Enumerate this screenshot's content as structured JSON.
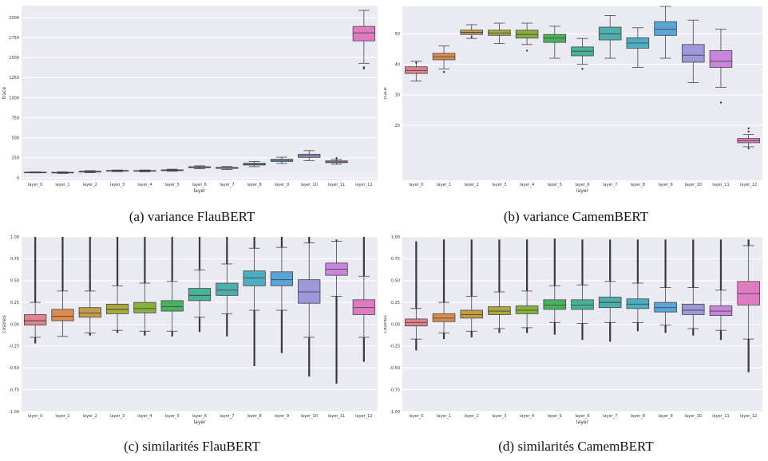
{
  "chart_data": [
    {
      "type": "box",
      "caption": "(a) variance FlauBERT",
      "xlabel": "layer",
      "ylabel": "trace",
      "ylim": [
        -30,
        2150
      ],
      "yticks": [
        0,
        250,
        500,
        750,
        1000,
        1250,
        1500,
        1750,
        2000
      ],
      "categories": [
        "layer_0",
        "layer_1",
        "layer_2",
        "layer_3",
        "layer_4",
        "layer_5",
        "layer_6",
        "layer_7",
        "layer_8",
        "layer_9",
        "layer_10",
        "layer_11",
        "layer_12"
      ],
      "colors": [
        "#e1828e",
        "#dd8a4f",
        "#c49c48",
        "#a8a83f",
        "#87b03d",
        "#49b25e",
        "#4bb195",
        "#4eaea9",
        "#4daec3",
        "#5aa5d8",
        "#9e97da",
        "#c985dc",
        "#e07bc2"
      ],
      "boxes": [
        {
          "min": 62,
          "q1": 66,
          "median": 68,
          "q3": 71,
          "max": 75,
          "outliers": []
        },
        {
          "min": 55,
          "q1": 61,
          "median": 65,
          "q3": 69,
          "max": 75,
          "outliers": []
        },
        {
          "min": 65,
          "q1": 72,
          "median": 77,
          "q3": 82,
          "max": 90,
          "outliers": []
        },
        {
          "min": 78,
          "q1": 84,
          "median": 88,
          "q3": 92,
          "max": 98,
          "outliers": []
        },
        {
          "min": 76,
          "q1": 83,
          "median": 87,
          "q3": 91,
          "max": 98,
          "outliers": []
        },
        {
          "min": 82,
          "q1": 90,
          "median": 95,
          "q3": 100,
          "max": 108,
          "outliers": []
        },
        {
          "min": 115,
          "q1": 127,
          "median": 133,
          "q3": 139,
          "max": 150,
          "outliers": []
        },
        {
          "min": 105,
          "q1": 118,
          "median": 124,
          "q3": 130,
          "max": 142,
          "outliers": []
        },
        {
          "min": 140,
          "q1": 160,
          "median": 170,
          "q3": 182,
          "max": 205,
          "outliers": []
        },
        {
          "min": 180,
          "q1": 205,
          "median": 218,
          "q3": 232,
          "max": 258,
          "outliers": []
        },
        {
          "min": 215,
          "q1": 255,
          "median": 275,
          "q3": 295,
          "max": 340,
          "outliers": []
        },
        {
          "min": 170,
          "q1": 190,
          "median": 200,
          "q3": 212,
          "max": 230,
          "outliers": [
            245
          ]
        },
        {
          "min": 1430,
          "q1": 1710,
          "median": 1810,
          "q3": 1890,
          "max": 2090,
          "outliers": [
            1365,
            1380
          ]
        }
      ]
    },
    {
      "type": "box",
      "caption": "(b) variance CamemBERT",
      "xlabel": "layer",
      "ylabel": "trace",
      "ylim": [
        2,
        59
      ],
      "yticks": [
        20,
        30,
        40,
        50
      ],
      "categories": [
        "layer_0",
        "layer_1",
        "layer_2",
        "layer_3",
        "layer_4",
        "layer_5",
        "layer_6",
        "layer_7",
        "layer_8",
        "layer_9",
        "layer_10",
        "layer_11",
        "layer_12"
      ],
      "colors": [
        "#e1828e",
        "#dd8a4f",
        "#c49c48",
        "#a8a83f",
        "#87b03d",
        "#49b25e",
        "#4bb195",
        "#4eaea9",
        "#4daec3",
        "#5aa5d8",
        "#9e97da",
        "#c985dc",
        "#e07bc2"
      ],
      "boxes": [
        {
          "min": 34.5,
          "q1": 37.0,
          "median": 38.0,
          "q3": 39.2,
          "max": 41.0,
          "outliers": [
            40.5
          ]
        },
        {
          "min": 38.5,
          "q1": 41.5,
          "median": 42.5,
          "q3": 43.6,
          "max": 46.0,
          "outliers": [
            37.5
          ]
        },
        {
          "min": 48.5,
          "q1": 49.8,
          "median": 50.5,
          "q3": 51.2,
          "max": 53.0,
          "outliers": [
            49.0
          ]
        },
        {
          "min": 46.8,
          "q1": 49.5,
          "median": 50.3,
          "q3": 51.2,
          "max": 53.5,
          "outliers": []
        },
        {
          "min": 46.5,
          "q1": 48.6,
          "median": 49.8,
          "q3": 51.2,
          "max": 53.5,
          "outliers": [
            44.5
          ]
        },
        {
          "min": 42.0,
          "q1": 47.2,
          "median": 48.6,
          "q3": 49.8,
          "max": 52.5,
          "outliers": []
        },
        {
          "min": 40.0,
          "q1": 42.8,
          "median": 44.3,
          "q3": 45.7,
          "max": 48.5,
          "outliers": [
            38.5
          ]
        },
        {
          "min": 42.0,
          "q1": 48.0,
          "median": 50.0,
          "q3": 52.2,
          "max": 56.0,
          "outliers": []
        },
        {
          "min": 39.0,
          "q1": 45.3,
          "median": 47.0,
          "q3": 48.7,
          "max": 52.0,
          "outliers": []
        },
        {
          "min": 42.0,
          "q1": 49.5,
          "median": 51.5,
          "q3": 54.0,
          "max": 59.0,
          "outliers": []
        },
        {
          "min": 34.0,
          "q1": 40.7,
          "median": 43.0,
          "q3": 46.5,
          "max": 54.5,
          "outliers": []
        },
        {
          "min": 32.5,
          "q1": 39.0,
          "median": 41.0,
          "q3": 44.5,
          "max": 51.5,
          "outliers": [
            27.5
          ]
        },
        {
          "min": 13.0,
          "q1": 14.3,
          "median": 15.0,
          "q3": 15.7,
          "max": 17.0,
          "outliers": [
            18.0,
            19.0,
            12.5
          ]
        }
      ]
    },
    {
      "type": "box",
      "caption": "(c) similarités FlauBERT",
      "xlabel": "layer",
      "ylabel": "cosines",
      "ylim": [
        -1.0,
        1.0
      ],
      "yticks": [
        -1.0,
        -0.75,
        -0.5,
        -0.25,
        0.0,
        0.25,
        0.5,
        0.75,
        1.0
      ],
      "categories": [
        "layer_0",
        "layer_1",
        "layer_2",
        "layer_3",
        "layer_4",
        "layer_5",
        "layer_6",
        "layer_7",
        "layer_8",
        "layer_9",
        "layer_10",
        "layer_11",
        "layer_12"
      ],
      "colors": [
        "#e1828e",
        "#dd8a4f",
        "#c49c48",
        "#a8a83f",
        "#87b03d",
        "#49b25e",
        "#4bb195",
        "#4eaea9",
        "#4daec3",
        "#5aa5d8",
        "#9e97da",
        "#c985dc",
        "#e07bc2"
      ],
      "boxes": [
        {
          "min": -0.15,
          "q1": -0.01,
          "median": 0.04,
          "q3": 0.11,
          "max": 0.25,
          "fliers": [
            -0.22,
            1.0
          ]
        },
        {
          "min": -0.14,
          "q1": 0.04,
          "median": 0.09,
          "q3": 0.17,
          "max": 0.38,
          "fliers": [
            1.0
          ]
        },
        {
          "min": -0.1,
          "q1": 0.08,
          "median": 0.13,
          "q3": 0.19,
          "max": 0.38,
          "fliers": [
            -0.13,
            1.0
          ]
        },
        {
          "min": -0.07,
          "q1": 0.12,
          "median": 0.17,
          "q3": 0.23,
          "max": 0.44,
          "fliers": [
            -0.1,
            1.0
          ]
        },
        {
          "min": -0.08,
          "q1": 0.13,
          "median": 0.18,
          "q3": 0.25,
          "max": 0.47,
          "fliers": [
            -0.13,
            1.0
          ]
        },
        {
          "min": -0.08,
          "q1": 0.15,
          "median": 0.2,
          "q3": 0.27,
          "max": 0.49,
          "fliers": [
            -0.14,
            1.0
          ]
        },
        {
          "min": 0.08,
          "q1": 0.27,
          "median": 0.33,
          "q3": 0.41,
          "max": 0.62,
          "fliers": [
            -0.09,
            1.0
          ]
        },
        {
          "min": 0.12,
          "q1": 0.33,
          "median": 0.39,
          "q3": 0.47,
          "max": 0.69,
          "fliers": [
            -0.14,
            1.0
          ]
        },
        {
          "min": 0.16,
          "q1": 0.44,
          "median": 0.53,
          "q3": 0.61,
          "max": 0.87,
          "fliers": [
            -0.48,
            1.0
          ]
        },
        {
          "min": 0.16,
          "q1": 0.44,
          "median": 0.51,
          "q3": 0.6,
          "max": 0.88,
          "fliers": [
            -0.33,
            1.0
          ]
        },
        {
          "min": -0.15,
          "q1": 0.24,
          "median": 0.37,
          "q3": 0.51,
          "max": 0.93,
          "fliers": [
            -0.6,
            1.0
          ]
        },
        {
          "min": 0.32,
          "q1": 0.56,
          "median": 0.63,
          "q3": 0.7,
          "max": 0.95,
          "fliers": [
            -0.68,
            0.97
          ]
        },
        {
          "min": -0.15,
          "q1": 0.11,
          "median": 0.19,
          "q3": 0.28,
          "max": 0.55,
          "fliers": [
            -0.43,
            1.0
          ]
        }
      ]
    },
    {
      "type": "box",
      "caption": "(d) similarités CamemBERT",
      "xlabel": "layer",
      "ylabel": "cosines",
      "ylim": [
        -1.0,
        1.0
      ],
      "yticks": [
        -1.0,
        -0.75,
        -0.5,
        -0.25,
        0.0,
        0.25,
        0.5,
        0.75,
        1.0
      ],
      "categories": [
        "layer_0",
        "layer_1",
        "layer_2",
        "layer_3",
        "layer_4",
        "layer_5",
        "layer_6",
        "layer_7",
        "layer_8",
        "layer_9",
        "layer_10",
        "layer_11",
        "layer_12"
      ],
      "colors": [
        "#e1828e",
        "#dd8a4f",
        "#c49c48",
        "#a8a83f",
        "#87b03d",
        "#49b25e",
        "#4bb195",
        "#4eaea9",
        "#4daec3",
        "#5aa5d8",
        "#9e97da",
        "#c985dc",
        "#e07bc2"
      ],
      "boxes": [
        {
          "min": -0.17,
          "q1": -0.02,
          "median": 0.02,
          "q3": 0.06,
          "max": 0.18,
          "fliers": [
            -0.3,
            0.95
          ]
        },
        {
          "min": -0.1,
          "q1": 0.03,
          "median": 0.07,
          "q3": 0.12,
          "max": 0.25,
          "fliers": [
            -0.17,
            0.97
          ]
        },
        {
          "min": -0.08,
          "q1": 0.07,
          "median": 0.11,
          "q3": 0.16,
          "max": 0.32,
          "fliers": [
            -0.15,
            0.97
          ]
        },
        {
          "min": -0.05,
          "q1": 0.11,
          "median": 0.15,
          "q3": 0.2,
          "max": 0.37,
          "fliers": [
            -0.1,
            0.97
          ]
        },
        {
          "min": -0.04,
          "q1": 0.12,
          "median": 0.16,
          "q3": 0.21,
          "max": 0.38,
          "fliers": [
            -0.1,
            0.97
          ]
        },
        {
          "min": 0.02,
          "q1": 0.17,
          "median": 0.22,
          "q3": 0.28,
          "max": 0.44,
          "fliers": [
            -0.12,
            0.98
          ]
        },
        {
          "min": 0.01,
          "q1": 0.17,
          "median": 0.22,
          "q3": 0.28,
          "max": 0.45,
          "fliers": [
            -0.18,
            0.97
          ]
        },
        {
          "min": 0.02,
          "q1": 0.19,
          "median": 0.25,
          "q3": 0.31,
          "max": 0.49,
          "fliers": [
            -0.2,
            0.97
          ]
        },
        {
          "min": 0.02,
          "q1": 0.18,
          "median": 0.23,
          "q3": 0.29,
          "max": 0.47,
          "fliers": [
            -0.08,
            0.97
          ]
        },
        {
          "min": -0.01,
          "q1": 0.14,
          "median": 0.19,
          "q3": 0.25,
          "max": 0.42,
          "fliers": [
            -0.1,
            0.97
          ]
        },
        {
          "min": -0.05,
          "q1": 0.11,
          "median": 0.16,
          "q3": 0.23,
          "max": 0.42,
          "fliers": [
            -0.13,
            0.97
          ]
        },
        {
          "min": -0.07,
          "q1": 0.1,
          "median": 0.15,
          "q3": 0.21,
          "max": 0.39,
          "fliers": [
            -0.18,
            0.97
          ]
        },
        {
          "min": -0.17,
          "q1": 0.22,
          "median": 0.35,
          "q3": 0.49,
          "max": 0.9,
          "fliers": [
            -0.55,
            0.97
          ]
        }
      ]
    }
  ]
}
